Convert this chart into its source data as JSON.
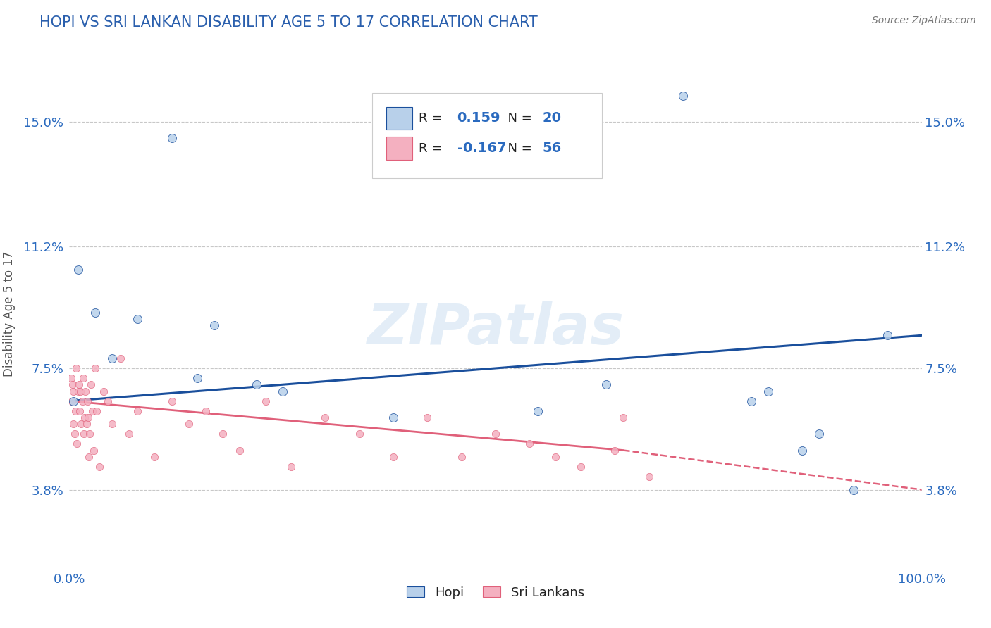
{
  "title": "HOPI VS SRI LANKAN DISABILITY AGE 5 TO 17 CORRELATION CHART",
  "source": "Source: ZipAtlas.com",
  "ylabel": "Disability Age 5 to 17",
  "watermark": "ZIPatlas",
  "xlim": [
    0,
    100
  ],
  "ylim": [
    1.5,
    16.8
  ],
  "yticks": [
    3.8,
    7.5,
    11.2,
    15.0
  ],
  "ytick_labels": [
    "3.8%",
    "7.5%",
    "11.2%",
    "15.0%"
  ],
  "xticks": [
    0,
    100
  ],
  "xtick_labels": [
    "0.0%",
    "100.0%"
  ],
  "legend_labels": [
    "Hopi",
    "Sri Lankans"
  ],
  "hopi_color": "#b8d0ea",
  "sri_color": "#f4b0c0",
  "hopi_line_color": "#1a4f9c",
  "sri_line_color": "#e0607a",
  "R_hopi": "0.159",
  "N_hopi": "20",
  "R_sri": "-0.167",
  "N_sri": "56",
  "hopi_scatter_x": [
    1.0,
    3.0,
    8.0,
    12.0,
    17.0,
    22.0,
    55.0,
    63.0,
    72.0,
    82.0,
    86.0,
    88.0,
    92.0,
    96.0,
    0.5,
    5.0,
    15.0,
    25.0,
    38.0,
    80.0
  ],
  "hopi_scatter_y": [
    10.5,
    9.2,
    9.0,
    14.5,
    8.8,
    7.0,
    6.2,
    7.0,
    15.8,
    6.8,
    5.0,
    5.5,
    3.8,
    8.5,
    6.5,
    7.8,
    7.2,
    6.8,
    6.0,
    6.5
  ],
  "sri_scatter_x": [
    0.2,
    0.3,
    0.4,
    0.5,
    0.5,
    0.6,
    0.7,
    0.8,
    0.9,
    1.0,
    1.1,
    1.2,
    1.3,
    1.4,
    1.5,
    1.6,
    1.7,
    1.8,
    1.9,
    2.0,
    2.1,
    2.2,
    2.3,
    2.4,
    2.5,
    2.7,
    2.9,
    3.0,
    3.2,
    3.5,
    4.0,
    4.5,
    5.0,
    6.0,
    7.0,
    8.0,
    10.0,
    12.0,
    14.0,
    16.0,
    18.0,
    20.0,
    23.0,
    26.0,
    30.0,
    34.0,
    38.0,
    42.0,
    46.0,
    50.0,
    54.0,
    57.0,
    60.0,
    64.0,
    65.0,
    68.0
  ],
  "sri_scatter_y": [
    7.2,
    6.5,
    7.0,
    5.8,
    6.8,
    5.5,
    6.2,
    7.5,
    5.2,
    6.8,
    7.0,
    6.2,
    6.8,
    5.8,
    6.5,
    7.2,
    5.5,
    6.0,
    6.8,
    5.8,
    6.5,
    6.0,
    4.8,
    5.5,
    7.0,
    6.2,
    5.0,
    7.5,
    6.2,
    4.5,
    6.8,
    6.5,
    5.8,
    7.8,
    5.5,
    6.2,
    4.8,
    6.5,
    5.8,
    6.2,
    5.5,
    5.0,
    6.5,
    4.5,
    6.0,
    5.5,
    4.8,
    6.0,
    4.8,
    5.5,
    5.2,
    4.8,
    4.5,
    5.0,
    6.0,
    4.2
  ],
  "sri_solid_end_x": 65,
  "hopi_trend_y0": 6.5,
  "hopi_trend_y1": 8.5,
  "sri_trend_y0": 6.5,
  "sri_solid_end_y": 5.0,
  "sri_dashed_end_y": 3.8,
  "background_color": "#ffffff",
  "grid_color": "#c8c8c8",
  "title_color": "#2a5fad",
  "axis_label_color": "#555555",
  "tick_label_color": "#2a6abf",
  "source_color": "#777777",
  "number_color": "#2a6abf",
  "label_color": "#222222"
}
